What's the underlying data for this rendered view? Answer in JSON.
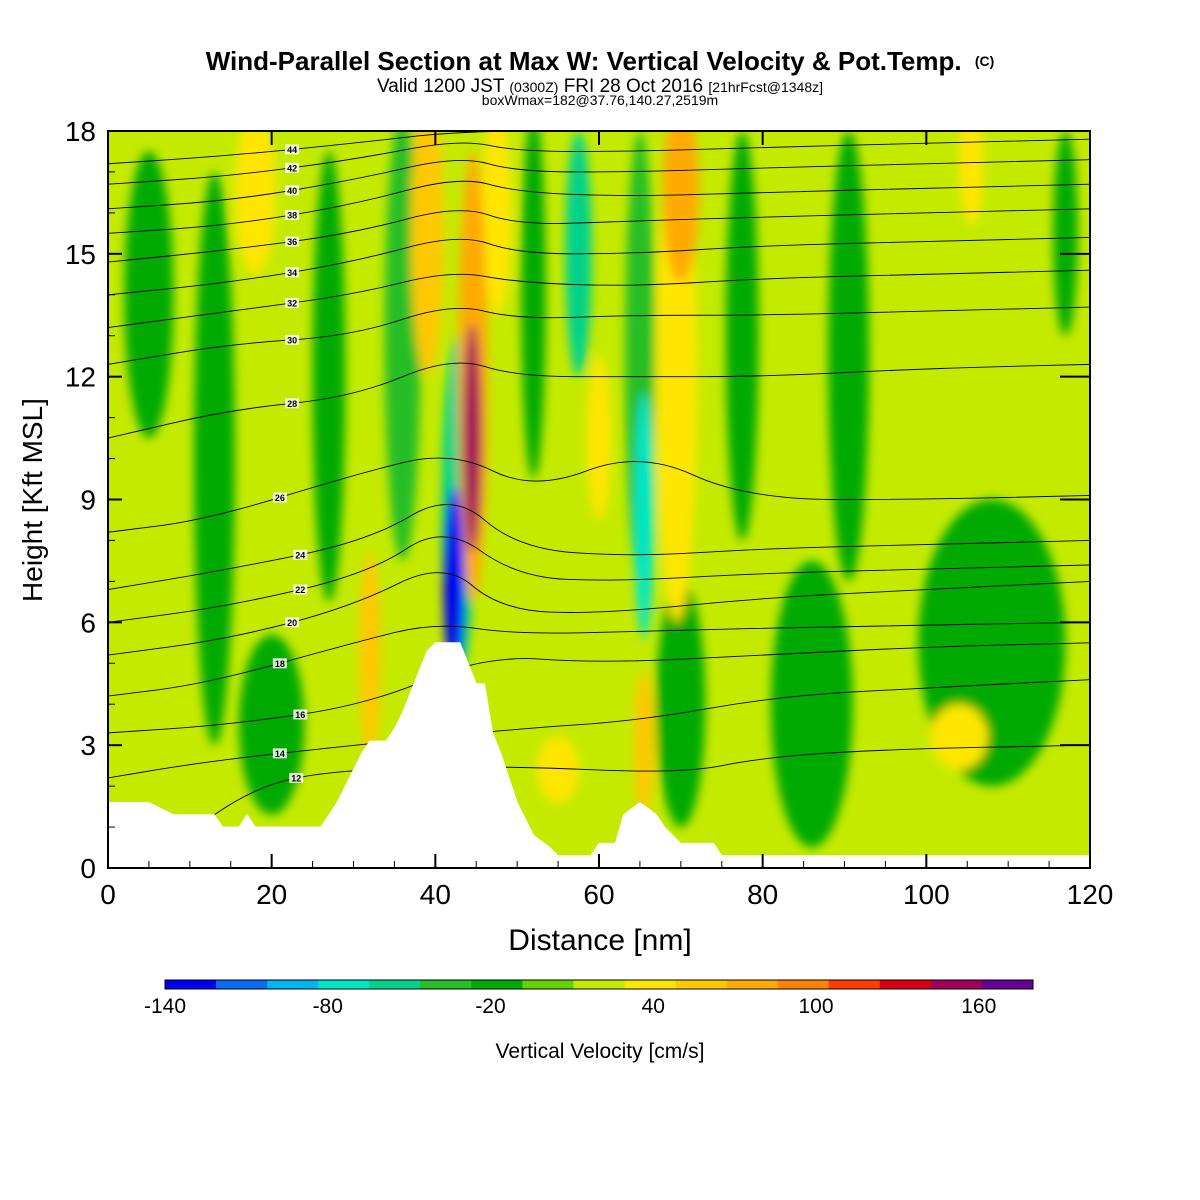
{
  "chart_data": {
    "type": "heatmap",
    "title": "Wind-Parallel Section at Max W: Vertical Velocity & Pot.Temp.",
    "title_mark": "(C)",
    "subtitle": {
      "valid": "Valid 1200 JST",
      "utc": "(0300Z)",
      "date": "FRI 28 Oct 2016",
      "fcst": "[21hrFcst@1348z]"
    },
    "subtitle2": "boxWmax=182@37.76,140.27,2519m",
    "xlabel": "Distance [nm]",
    "ylabel": "Height [Kft MSL]",
    "xlim": [
      0,
      120
    ],
    "ylim": [
      0,
      18
    ],
    "x_ticks": [
      "0",
      "20",
      "40",
      "60",
      "80",
      "100",
      "120"
    ],
    "y_ticks": [
      "0",
      "3",
      "6",
      "9",
      "12",
      "15",
      "18"
    ],
    "colorbar": {
      "label": "Vertical Velocity [cm/s]",
      "min": -140,
      "max": 180,
      "step": 20,
      "tick_labels": [
        "-140",
        "-80",
        "-20",
        "40",
        "100",
        "160"
      ],
      "tick_values": [
        -140,
        -80,
        -20,
        40,
        100,
        160
      ],
      "colors": [
        "#0000f0",
        "#0a6cf0",
        "#00b4f0",
        "#00e6c8",
        "#00d28c",
        "#28be28",
        "#00aa00",
        "#66d200",
        "#c4ea00",
        "#ffe600",
        "#ffc800",
        "#ffaa00",
        "#ff8200",
        "#ff3c00",
        "#d70014",
        "#a0005a",
        "#640096"
      ]
    },
    "background_color": "#c4ea00",
    "terrain_profile": [
      [
        0,
        1.6
      ],
      [
        5,
        1.6
      ],
      [
        8,
        1.3
      ],
      [
        13,
        1.3
      ],
      [
        14,
        1.0
      ],
      [
        16,
        1.0
      ],
      [
        17,
        1.3
      ],
      [
        18,
        1.0
      ],
      [
        26,
        1.0
      ],
      [
        27,
        1.3
      ],
      [
        28,
        1.6
      ],
      [
        29,
        2.0
      ],
      [
        30,
        2.4
      ],
      [
        31,
        2.8
      ],
      [
        32,
        3.1
      ],
      [
        34,
        3.1
      ],
      [
        35,
        3.4
      ],
      [
        36,
        3.8
      ],
      [
        37,
        4.3
      ],
      [
        38,
        4.8
      ],
      [
        39,
        5.3
      ],
      [
        40,
        5.5
      ],
      [
        43,
        5.5
      ],
      [
        44,
        5.0
      ],
      [
        45,
        4.5
      ],
      [
        46,
        4.5
      ],
      [
        47,
        3.3
      ],
      [
        48,
        2.8
      ],
      [
        49,
        2.2
      ],
      [
        50,
        1.6
      ],
      [
        51,
        1.2
      ],
      [
        52,
        0.8
      ],
      [
        54,
        0.5
      ],
      [
        55,
        0.3
      ],
      [
        59,
        0.3
      ],
      [
        60,
        0.6
      ],
      [
        62,
        0.6
      ],
      [
        63,
        1.3
      ],
      [
        65,
        1.6
      ],
      [
        67,
        1.3
      ],
      [
        68,
        1.0
      ],
      [
        70,
        0.6
      ],
      [
        74,
        0.6
      ],
      [
        75,
        0.3
      ],
      [
        120,
        0.3
      ]
    ],
    "w_features": [
      {
        "x": 42.3,
        "y": 7.0,
        "hw": 1.3,
        "hh": 2.3,
        "w": -140
      },
      {
        "x": 42.8,
        "y": 8.8,
        "hw": 2.0,
        "hh": 4.2,
        "w": -60
      },
      {
        "x": 36.0,
        "y": 13.0,
        "hw": 2.2,
        "hh": 5.5,
        "w": -30
      },
      {
        "x": 44.5,
        "y": 10.5,
        "hw": 1.1,
        "hh": 2.8,
        "w": 160
      },
      {
        "x": 44.6,
        "y": 12.0,
        "hw": 1.8,
        "hh": 5.5,
        "w": 90
      },
      {
        "x": 39.0,
        "y": 15.5,
        "hw": 2.0,
        "hh": 3.5,
        "w": 60
      },
      {
        "x": 47.5,
        "y": 16.0,
        "hw": 1.8,
        "hh": 2.5,
        "w": 40
      },
      {
        "x": 65.5,
        "y": 8.6,
        "hw": 1.2,
        "hh": 3.0,
        "w": -80
      },
      {
        "x": 65.0,
        "y": 12.5,
        "hw": 1.8,
        "hh": 5.5,
        "w": -30
      },
      {
        "x": 57.5,
        "y": 15.0,
        "hw": 1.6,
        "hh": 3.0,
        "w": -50
      },
      {
        "x": 70.0,
        "y": 16.5,
        "hw": 2.2,
        "hh": 2.2,
        "w": 90
      },
      {
        "x": 69.5,
        "y": 12.0,
        "hw": 2.5,
        "hh": 6.0,
        "w": 40
      },
      {
        "x": 60.0,
        "y": 10.5,
        "hw": 1.5,
        "hh": 2.0,
        "w": 40
      },
      {
        "x": 65.5,
        "y": 3.0,
        "hw": 1.2,
        "hh": 1.8,
        "w": 60
      },
      {
        "x": 32.0,
        "y": 5.2,
        "hw": 1.3,
        "hh": 2.5,
        "w": 60
      },
      {
        "x": 55.0,
        "y": 2.4,
        "hw": 2.6,
        "hh": 0.8,
        "w": 40
      },
      {
        "x": 18.0,
        "y": 16.5,
        "hw": 2.5,
        "hh": 2.0,
        "w": 40
      },
      {
        "x": 105.5,
        "y": 17.2,
        "hw": 1.5,
        "hh": 1.5,
        "w": 40
      },
      {
        "x": 104.0,
        "y": 3.2,
        "hw": 3.5,
        "hh": 0.8,
        "w": 40
      },
      {
        "x": 5.0,
        "y": 14.0,
        "hw": 3.0,
        "hh": 3.5,
        "w": -20
      },
      {
        "x": 13.0,
        "y": 10.0,
        "hw": 2.5,
        "hh": 7.0,
        "w": -20
      },
      {
        "x": 27.0,
        "y": 12.0,
        "hw": 2.0,
        "hh": 5.5,
        "w": -20
      },
      {
        "x": 52.0,
        "y": 14.0,
        "hw": 1.5,
        "hh": 4.5,
        "w": -20
      },
      {
        "x": 77.5,
        "y": 13.0,
        "hw": 2.0,
        "hh": 5.0,
        "w": -20
      },
      {
        "x": 90.5,
        "y": 12.5,
        "hw": 2.5,
        "hh": 5.5,
        "w": -20
      },
      {
        "x": 117.0,
        "y": 15.5,
        "hw": 1.5,
        "hh": 2.5,
        "w": -20
      },
      {
        "x": 20.0,
        "y": 3.5,
        "hw": 4.0,
        "hh": 2.2,
        "w": -20
      },
      {
        "x": 86.0,
        "y": 4.0,
        "hw": 5.0,
        "hh": 3.5,
        "w": -20
      },
      {
        "x": 108.0,
        "y": 5.5,
        "hw": 9.0,
        "hh": 3.5,
        "w": -20
      },
      {
        "x": 70.0,
        "y": 4.0,
        "hw": 3.0,
        "hh": 3.0,
        "w": -20
      }
    ],
    "contours": [
      {
        "label": "12",
        "pts": [
          [
            8,
            0.6
          ],
          [
            18,
            2.0
          ],
          [
            28,
            2.4
          ],
          [
            48,
            2.5
          ],
          [
            70,
            2.3
          ],
          [
            80,
            2.7
          ],
          [
            95,
            2.9
          ],
          [
            120,
            3.0
          ]
        ]
      },
      {
        "label": "14",
        "pts": [
          [
            0,
            2.2
          ],
          [
            12,
            2.6
          ],
          [
            30,
            3.0
          ],
          [
            50,
            3.4
          ],
          [
            65,
            3.6
          ],
          [
            82,
            4.2
          ],
          [
            100,
            4.4
          ],
          [
            120,
            4.6
          ]
        ]
      },
      {
        "label": "16",
        "pts": [
          [
            0,
            3.3
          ],
          [
            15,
            3.5
          ],
          [
            32,
            4.0
          ],
          [
            46,
            5.2
          ],
          [
            60,
            5.0
          ],
          [
            80,
            5.2
          ],
          [
            100,
            5.4
          ],
          [
            120,
            5.5
          ]
        ]
      },
      {
        "label": "18",
        "pts": [
          [
            0,
            4.2
          ],
          [
            12,
            4.5
          ],
          [
            30,
            5.5
          ],
          [
            40,
            6.0
          ],
          [
            50,
            5.7
          ],
          [
            68,
            5.8
          ],
          [
            90,
            5.9
          ],
          [
            120,
            6.0
          ]
        ]
      },
      {
        "label": "20",
        "pts": [
          [
            0,
            5.2
          ],
          [
            15,
            5.6
          ],
          [
            30,
            6.4
          ],
          [
            41,
            7.5
          ],
          [
            48,
            6.3
          ],
          [
            60,
            6.2
          ],
          [
            80,
            6.6
          ],
          [
            100,
            6.8
          ],
          [
            120,
            7.0
          ]
        ]
      },
      {
        "label": "22",
        "pts": [
          [
            0,
            6.0
          ],
          [
            15,
            6.4
          ],
          [
            32,
            7.2
          ],
          [
            41,
            8.4
          ],
          [
            50,
            7.1
          ],
          [
            62,
            7.0
          ],
          [
            80,
            7.2
          ],
          [
            100,
            7.3
          ],
          [
            120,
            7.4
          ]
        ]
      },
      {
        "label": "24",
        "pts": [
          [
            0,
            6.8
          ],
          [
            15,
            7.3
          ],
          [
            32,
            8.0
          ],
          [
            42,
            9.2
          ],
          [
            50,
            7.8
          ],
          [
            64,
            7.6
          ],
          [
            80,
            7.8
          ],
          [
            100,
            7.9
          ],
          [
            120,
            8.0
          ]
        ]
      },
      {
        "label": "26",
        "pts": [
          [
            0,
            8.2
          ],
          [
            12,
            8.5
          ],
          [
            30,
            9.6
          ],
          [
            42,
            10.2
          ],
          [
            52,
            9.2
          ],
          [
            65,
            10.2
          ],
          [
            78,
            9.0
          ],
          [
            100,
            9.0
          ],
          [
            120,
            9.1
          ]
        ]
      },
      {
        "label": "28",
        "pts": [
          [
            0,
            10.5
          ],
          [
            15,
            11.2
          ],
          [
            30,
            11.5
          ],
          [
            42,
            12.5
          ],
          [
            50,
            12.0
          ],
          [
            64,
            12.0
          ],
          [
            80,
            12.0
          ],
          [
            100,
            12.2
          ],
          [
            120,
            12.3
          ]
        ]
      },
      {
        "label": "30",
        "pts": [
          [
            0,
            12.3
          ],
          [
            15,
            12.8
          ],
          [
            30,
            13.0
          ],
          [
            42,
            13.8
          ],
          [
            50,
            13.4
          ],
          [
            64,
            13.5
          ],
          [
            80,
            13.5
          ],
          [
            100,
            13.6
          ],
          [
            120,
            13.7
          ]
        ]
      },
      {
        "label": "32",
        "pts": [
          [
            0,
            13.2
          ],
          [
            15,
            13.6
          ],
          [
            30,
            14.0
          ],
          [
            42,
            14.6
          ],
          [
            50,
            14.3
          ],
          [
            64,
            14.2
          ],
          [
            80,
            14.4
          ],
          [
            100,
            14.5
          ],
          [
            120,
            14.6
          ]
        ]
      },
      {
        "label": "34",
        "pts": [
          [
            0,
            14.0
          ],
          [
            15,
            14.3
          ],
          [
            30,
            14.8
          ],
          [
            43,
            15.5
          ],
          [
            50,
            15.0
          ],
          [
            64,
            15.0
          ],
          [
            80,
            15.2
          ],
          [
            100,
            15.3
          ],
          [
            120,
            15.4
          ]
        ]
      },
      {
        "label": "36",
        "pts": [
          [
            0,
            14.8
          ],
          [
            15,
            15.1
          ],
          [
            30,
            15.5
          ],
          [
            43,
            16.2
          ],
          [
            50,
            15.7
          ],
          [
            64,
            15.8
          ],
          [
            80,
            15.9
          ],
          [
            100,
            16.0
          ],
          [
            120,
            16.1
          ]
        ]
      },
      {
        "label": "38",
        "pts": [
          [
            0,
            15.5
          ],
          [
            15,
            15.7
          ],
          [
            30,
            16.2
          ],
          [
            43,
            16.9
          ],
          [
            50,
            16.5
          ],
          [
            64,
            16.4
          ],
          [
            80,
            16.5
          ],
          [
            100,
            16.6
          ],
          [
            120,
            16.7
          ]
        ]
      },
      {
        "label": "40",
        "pts": [
          [
            0,
            16.1
          ],
          [
            15,
            16.3
          ],
          [
            30,
            16.8
          ],
          [
            43,
            17.4
          ],
          [
            50,
            17.0
          ],
          [
            64,
            17.0
          ],
          [
            80,
            17.1
          ],
          [
            100,
            17.2
          ],
          [
            120,
            17.3
          ]
        ]
      },
      {
        "label": "42",
        "pts": [
          [
            0,
            16.7
          ],
          [
            15,
            16.9
          ],
          [
            30,
            17.3
          ],
          [
            43,
            17.8
          ],
          [
            50,
            17.5
          ],
          [
            64,
            17.5
          ],
          [
            80,
            17.6
          ],
          [
            100,
            17.7
          ],
          [
            120,
            17.8
          ]
        ]
      },
      {
        "label": "44",
        "pts": [
          [
            0,
            17.2
          ],
          [
            15,
            17.4
          ],
          [
            30,
            17.7
          ],
          [
            43,
            18.0
          ],
          [
            60,
            18.0
          ],
          [
            120,
            18.0
          ]
        ]
      }
    ]
  }
}
